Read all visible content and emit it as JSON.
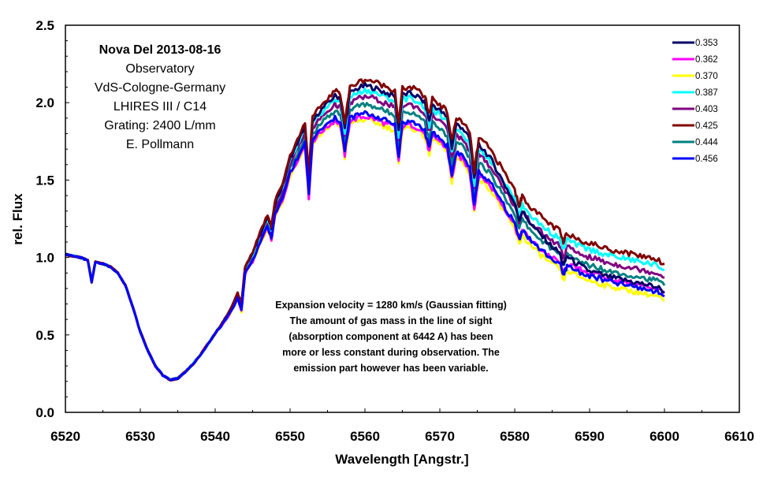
{
  "chart_data": {
    "type": "line",
    "xlabel": "Wavelength [Angstr.]",
    "ylabel": "rel. Flux",
    "xlim": [
      6520,
      6610
    ],
    "ylim": [
      0.0,
      2.5
    ],
    "x_ticks": [
      6520,
      6530,
      6540,
      6550,
      6560,
      6570,
      6580,
      6590,
      6600,
      6610
    ],
    "x_tick_labels": [
      "6520",
      "6530",
      "6540",
      "6550",
      "6560",
      "6570",
      "6580",
      "6590",
      "6600",
      "6610"
    ],
    "y_ticks": [
      0.0,
      0.5,
      1.0,
      1.5,
      2.0,
      2.5
    ],
    "y_tick_labels": [
      "0.0",
      "0.5",
      "1.0",
      "1.5",
      "2.0",
      "2.5"
    ],
    "grid": false,
    "legend_position": "top-right",
    "info_box": {
      "title": "Nova Del 2013-08-16",
      "lines": [
        "Observatory",
        "VdS-Cologne-Germany",
        "LHIRES III / C14",
        "Grating: 2400 L/mm",
        "E. Pollmann"
      ]
    },
    "annotation": [
      "Expansion velocity = 1280 km/s (Gaussian fitting)",
      "The amount of gas mass in the line of sight",
      "(absorption component at 6442 A) has been",
      "more or less constant during observation. The",
      "emission part however has been variable."
    ],
    "base_profile": {
      "x": [
        6520,
        6521,
        6522,
        6523,
        6523.5,
        6524,
        6525,
        6526,
        6527,
        6528,
        6529,
        6530,
        6531,
        6532,
        6533,
        6534,
        6535,
        6536,
        6537,
        6538,
        6539,
        6540,
        6541,
        6542,
        6543,
        6543.5,
        6544,
        6545,
        6546,
        6547,
        6547.5,
        6548,
        6549,
        6550,
        6551,
        6552,
        6552.5,
        6553,
        6554,
        6555,
        6556,
        6556.7,
        6557.3,
        6558,
        6559,
        6560,
        6561,
        6562,
        6563,
        6564,
        6564.5,
        6565,
        6566,
        6567,
        6568,
        6568.6,
        6569,
        6570,
        6571,
        6571.6,
        6572.2,
        6573,
        6574,
        6574.6,
        6575.2,
        6576,
        6577,
        6578,
        6579,
        6580,
        6580.6,
        6581,
        6582,
        6583,
        6584,
        6585,
        6586,
        6586.5,
        6587,
        6588,
        6589,
        6590,
        6591,
        6592,
        6593,
        6594,
        6595,
        6596,
        6597,
        6598,
        6599,
        6600
      ],
      "y": [
        1.02,
        1.01,
        1.0,
        0.98,
        0.84,
        0.97,
        0.96,
        0.94,
        0.9,
        0.82,
        0.68,
        0.52,
        0.4,
        0.3,
        0.24,
        0.21,
        0.22,
        0.26,
        0.31,
        0.37,
        0.44,
        0.51,
        0.57,
        0.64,
        0.74,
        0.66,
        0.9,
        0.98,
        1.1,
        1.2,
        1.12,
        1.28,
        1.38,
        1.55,
        1.64,
        1.74,
        1.4,
        1.76,
        1.82,
        1.86,
        1.9,
        1.88,
        1.68,
        1.9,
        1.92,
        1.93,
        1.92,
        1.9,
        1.88,
        1.86,
        1.64,
        1.87,
        1.88,
        1.86,
        1.82,
        1.7,
        1.81,
        1.77,
        1.72,
        1.53,
        1.68,
        1.66,
        1.58,
        1.33,
        1.55,
        1.52,
        1.46,
        1.38,
        1.3,
        1.22,
        1.12,
        1.18,
        1.12,
        1.07,
        1.03,
        0.99,
        0.96,
        0.88,
        0.95,
        0.92,
        0.9,
        0.88,
        0.87,
        0.85,
        0.84,
        0.83,
        0.82,
        0.81,
        0.8,
        0.79,
        0.78,
        0.75
      ]
    },
    "series": [
      {
        "name": "0.353",
        "color": "#000066",
        "emission_offset": 0.18,
        "tail_offset": 0.03
      },
      {
        "name": "0.362",
        "color": "#ff00ff",
        "emission_offset": -0.02,
        "tail_offset": 0.02
      },
      {
        "name": "0.370",
        "color": "#ffff00",
        "emission_offset": -0.04,
        "tail_offset": -0.03
      },
      {
        "name": "0.387",
        "color": "#00ffff",
        "emission_offset": 0.15,
        "tail_offset": 0.17
      },
      {
        "name": "0.403",
        "color": "#800080",
        "emission_offset": 0.11,
        "tail_offset": 0.12
      },
      {
        "name": "0.425",
        "color": "#800000",
        "emission_offset": 0.22,
        "tail_offset": 0.21
      },
      {
        "name": "0.444",
        "color": "#008080",
        "emission_offset": 0.06,
        "tail_offset": 0.07
      },
      {
        "name": "0.456",
        "color": "#0000ff",
        "emission_offset": 0.0,
        "tail_offset": 0.0
      }
    ]
  }
}
